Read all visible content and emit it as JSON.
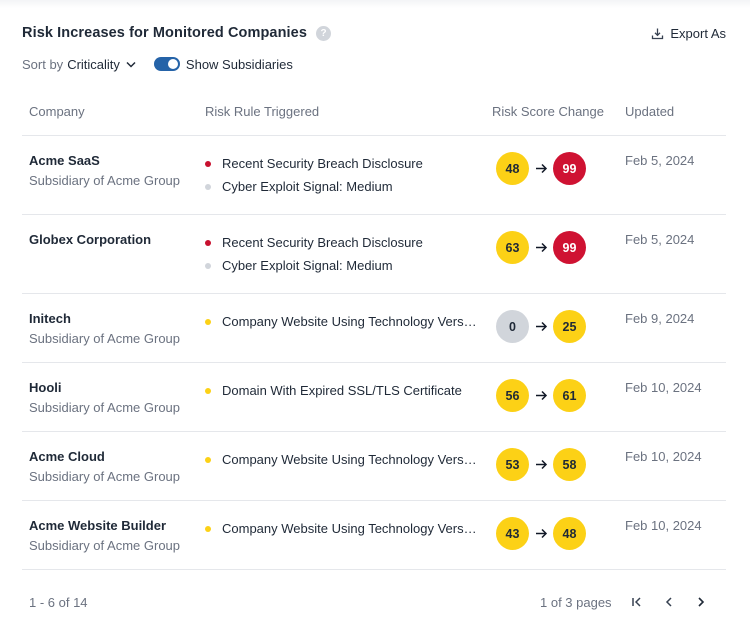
{
  "header": {
    "title": "Risk Increases for Monitored Companies",
    "help_glyph": "?",
    "export_label": "Export As"
  },
  "controls": {
    "sort_prefix": "Sort by",
    "sort_value": "Criticality",
    "toggle_label": "Show Subsidiaries",
    "toggle_on": true
  },
  "table": {
    "columns": [
      "Company",
      "Risk Rule Triggered",
      "Risk Score Change",
      "Updated"
    ],
    "rows": [
      {
        "name": "Acme SaaS",
        "subtitle": "Subsidiary of Acme Group",
        "rules": [
          {
            "text": "Recent Security Breach Disclosure",
            "dot_color": "#c8102e"
          },
          {
            "text": "Cyber Exploit Signal: Medium",
            "dot_color": "#d1d5db"
          }
        ],
        "score_from": "48",
        "from_color": "#fcd116",
        "score_to": "99",
        "to_color": "#cf1232",
        "updated": "Feb 5, 2024"
      },
      {
        "name": "Globex Corporation",
        "subtitle": "",
        "rules": [
          {
            "text": "Recent Security Breach Disclosure",
            "dot_color": "#c8102e"
          },
          {
            "text": "Cyber Exploit Signal: Medium",
            "dot_color": "#d1d5db"
          }
        ],
        "score_from": "63",
        "from_color": "#fcd116",
        "score_to": "99",
        "to_color": "#cf1232",
        "updated": "Feb 5, 2024"
      },
      {
        "name": "Initech",
        "subtitle": "Subsidiary of Acme Group",
        "rules": [
          {
            "text": "Company Website Using Technology Version...",
            "dot_color": "#fcd116"
          }
        ],
        "score_from": "0",
        "from_color": "#d1d5db",
        "score_to": "25",
        "to_color": "#fcd116",
        "updated": "Feb 9, 2024"
      },
      {
        "name": "Hooli",
        "subtitle": "Subsidiary of Acme Group",
        "rules": [
          {
            "text": "Domain With Expired SSL/TLS Certificate",
            "dot_color": "#fcd116"
          }
        ],
        "score_from": "56",
        "from_color": "#fcd116",
        "score_to": "61",
        "to_color": "#fcd116",
        "updated": "Feb 10, 2024"
      },
      {
        "name": "Acme Cloud",
        "subtitle": "Subsidiary of Acme Group",
        "rules": [
          {
            "text": "Company Website Using Technology Version...",
            "dot_color": "#fcd116"
          }
        ],
        "score_from": "53",
        "from_color": "#fcd116",
        "score_to": "58",
        "to_color": "#fcd116",
        "updated": "Feb 10, 2024"
      },
      {
        "name": "Acme Website Builder",
        "subtitle": "Subsidiary of Acme Group",
        "rules": [
          {
            "text": "Company Website Using Technology Version...",
            "dot_color": "#fcd116"
          }
        ],
        "score_from": "43",
        "from_color": "#fcd116",
        "score_to": "48",
        "to_color": "#fcd116",
        "updated": "Feb 10, 2024"
      }
    ]
  },
  "footer": {
    "range": "1 - 6 of 14",
    "pages": "1 of 3 pages"
  },
  "icons": {
    "export": "download-icon",
    "sort_caret": "chevron-down-icon",
    "first_page": "first-page-icon",
    "prev_page": "chevron-left-icon",
    "next_page": "chevron-right-icon",
    "arrow": "arrow-right-icon"
  },
  "colors": {
    "accent": "#2563a8",
    "critical": "#cf1232",
    "warning": "#fcd116",
    "neutral": "#d1d5db"
  }
}
